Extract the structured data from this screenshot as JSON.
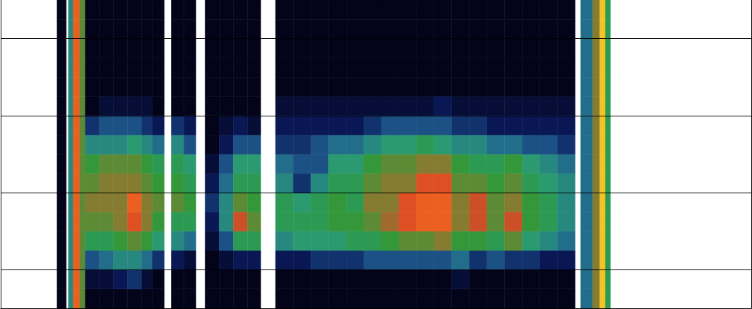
{
  "chart_data": {
    "type": "heatmap",
    "x_edges": [
      80,
      93,
      96,
      103,
      112,
      120,
      140,
      160,
      180,
      200,
      215,
      232,
      242,
      260,
      277,
      290,
      310,
      330,
      350,
      369,
      390,
      415,
      440,
      465,
      490,
      515,
      540,
      565,
      590,
      615,
      640,
      665,
      690,
      715,
      740,
      765,
      790,
      815,
      823,
      840,
      850,
      858,
      865
    ],
    "y_edges": [
      0.5,
      0.75,
      1,
      1.25,
      1.5,
      1.75,
      2,
      2.25,
      2.5,
      2.75,
      3,
      3.25,
      3.5,
      3.75,
      4,
      4.25,
      4.5
    ],
    "cells": [
      [
        0,
        null,
        3,
        8,
        5,
        0,
        0,
        0,
        0,
        0,
        0,
        null,
        0,
        0,
        null,
        0,
        0,
        0,
        0,
        null,
        0,
        0,
        0,
        0,
        0,
        0,
        0,
        0,
        0,
        0,
        0,
        0,
        0,
        0,
        0,
        0,
        0,
        null,
        2.5,
        5.5,
        9.5,
        4
      ],
      [
        0,
        null,
        3,
        8,
        5,
        0.5,
        0.5,
        1,
        1.5,
        0.5,
        0,
        null,
        0,
        0,
        null,
        0,
        0,
        0,
        0,
        null,
        0,
        0,
        0,
        0,
        0,
        0,
        0,
        0,
        0,
        0,
        0.5,
        0,
        0,
        0,
        0,
        0,
        0,
        null,
        2.5,
        5.5,
        9.5,
        4
      ],
      [
        0,
        null,
        3,
        8,
        5,
        2,
        2.5,
        3,
        3,
        2.5,
        1.5,
        null,
        1,
        0.5,
        null,
        0,
        0.5,
        1,
        1,
        null,
        1,
        1,
        1.5,
        1.5,
        1.5,
        2,
        2,
        2,
        2,
        2,
        2.5,
        1.5,
        2,
        1.5,
        1.5,
        1,
        1,
        null,
        2.5,
        5.5,
        9.5,
        4
      ],
      [
        0,
        null,
        3,
        8,
        5,
        4,
        4,
        4.5,
        5,
        4.5,
        3.5,
        null,
        3,
        2.5,
        null,
        0.5,
        2,
        4,
        4,
        null,
        3,
        3.5,
        3.5,
        3.5,
        4,
        4,
        4.5,
        5,
        5,
        5.5,
        4.5,
        4.5,
        4,
        5,
        3.5,
        3,
        2.5,
        null,
        2.5,
        5.5,
        9.5,
        4
      ],
      [
        0,
        null,
        3,
        8,
        5,
        5,
        5,
        5.5,
        7.5,
        5.5,
        4.5,
        null,
        4,
        4,
        null,
        1,
        3,
        7,
        5,
        null,
        4,
        4,
        4,
        4.5,
        4.5,
        5,
        6,
        7.5,
        8,
        8,
        5.5,
        7,
        5,
        7,
        4.5,
        4,
        3,
        null,
        2.5,
        5.5,
        9.5,
        4
      ],
      [
        0,
        null,
        3,
        8,
        5,
        5.5,
        5.5,
        5.5,
        8,
        5.5,
        5,
        null,
        5,
        4.5,
        null,
        1.5,
        3,
        5,
        4.5,
        null,
        4,
        3.5,
        4,
        4.5,
        4,
        5.5,
        5.5,
        7.5,
        8,
        8,
        5.5,
        7,
        5,
        5.5,
        4.5,
        4,
        3,
        null,
        2.5,
        5.5,
        9.5,
        4
      ],
      [
        0,
        null,
        3,
        8,
        5,
        5,
        5.5,
        5.5,
        5.5,
        5,
        4.5,
        null,
        4.5,
        4,
        null,
        1,
        2.5,
        4,
        4,
        null,
        3,
        1.5,
        3,
        4,
        4,
        5,
        5.5,
        5.5,
        7.5,
        7.5,
        5,
        5,
        4.5,
        5,
        4,
        3.5,
        3,
        null,
        2.5,
        5.5,
        9.5,
        4
      ],
      [
        0,
        null,
        3,
        8,
        5,
        4.5,
        5,
        5,
        5,
        4.5,
        4,
        null,
        4,
        3.5,
        null,
        0.5,
        2,
        3.5,
        3.5,
        null,
        2.5,
        2,
        2,
        3.5,
        3.5,
        4.5,
        5,
        5,
        5.5,
        5.5,
        4.5,
        4,
        4,
        4.5,
        3.5,
        3,
        2.5,
        null,
        2.5,
        5.5,
        9.5,
        4
      ],
      [
        0,
        null,
        3,
        8,
        5,
        3,
        3,
        3,
        3.5,
        3,
        2.5,
        null,
        3,
        2,
        null,
        0,
        1,
        2,
        2,
        null,
        1.5,
        1.5,
        2,
        2.5,
        2.5,
        3,
        3.5,
        3.5,
        4,
        3.5,
        3,
        3,
        2.5,
        2.5,
        2,
        2,
        1.5,
        null,
        2.5,
        5.5,
        9.5,
        4
      ],
      [
        0,
        null,
        3,
        8,
        5,
        1.5,
        2,
        2,
        2,
        1.5,
        1,
        null,
        1.5,
        1,
        null,
        0,
        0.5,
        1,
        0.5,
        null,
        1,
        1,
        1,
        1,
        1,
        1.5,
        2,
        2,
        2,
        2,
        1.5,
        1.5,
        1,
        1,
        1,
        1,
        1,
        null,
        2.5,
        5.5,
        9.5,
        4
      ],
      [
        0,
        null,
        3,
        8,
        5,
        0,
        0.5,
        0.5,
        0.5,
        0.5,
        0,
        null,
        0,
        0,
        null,
        0,
        0,
        0,
        0,
        null,
        0.5,
        0.5,
        0.5,
        0.5,
        0.5,
        0.5,
        0.5,
        0.5,
        0.5,
        1,
        0.5,
        0.5,
        0.5,
        0.5,
        0.5,
        0.5,
        0.5,
        null,
        2.5,
        5.5,
        9.5,
        4
      ],
      [
        0,
        null,
        3,
        8,
        5,
        0,
        0,
        0,
        0,
        0,
        0,
        null,
        0,
        0,
        null,
        0,
        0,
        0,
        0,
        null,
        0,
        0,
        0,
        0,
        0,
        0,
        0,
        0,
        0,
        0,
        0,
        0,
        0,
        0,
        0,
        0,
        0,
        null,
        2.5,
        5.5,
        9.5,
        4
      ],
      [
        0,
        null,
        3,
        8,
        5,
        0,
        0,
        0,
        0,
        0,
        0,
        null,
        0,
        0,
        null,
        0,
        0,
        0,
        0,
        null,
        0,
        0,
        0,
        0,
        0,
        0,
        0,
        0,
        0,
        0,
        0,
        0,
        0,
        0,
        0,
        0,
        0,
        null,
        2.5,
        5.5,
        9.5,
        4
      ],
      [
        0,
        null,
        3,
        8,
        5,
        0,
        0,
        0,
        0,
        0,
        0,
        null,
        0,
        0,
        null,
        0,
        0,
        0,
        0,
        null,
        0,
        0,
        0,
        0,
        0,
        0,
        0,
        0,
        0,
        0,
        0,
        0,
        0,
        0,
        0,
        0,
        0,
        null,
        2.5,
        5.5,
        9.5,
        4
      ],
      [
        0,
        null,
        3,
        8,
        5,
        0,
        0,
        0,
        0,
        0,
        0,
        null,
        0,
        0,
        null,
        0,
        0,
        0,
        0,
        null,
        0,
        0,
        0,
        0,
        0,
        0,
        0,
        0,
        0,
        0,
        0,
        0,
        0,
        0,
        0,
        0,
        0,
        null,
        2.5,
        5.5,
        9.5,
        4
      ],
      [
        0,
        null,
        3,
        8,
        5,
        0,
        0,
        0,
        0,
        0,
        0,
        null,
        0,
        0,
        null,
        0,
        0,
        0,
        0,
        null,
        0,
        0,
        0,
        0,
        0,
        0,
        0,
        0,
        0,
        0,
        0,
        0,
        0,
        0,
        0,
        0,
        0,
        null,
        2.5,
        5.5,
        9.5,
        4
      ]
    ],
    "color_range": [
      0,
      10
    ],
    "xlim": [
      0,
      1065
    ],
    "ylim": [
      0.5,
      4.5
    ],
    "yticks": [
      1,
      2,
      3,
      4
    ],
    "grid": true,
    "tick_labels": false
  }
}
